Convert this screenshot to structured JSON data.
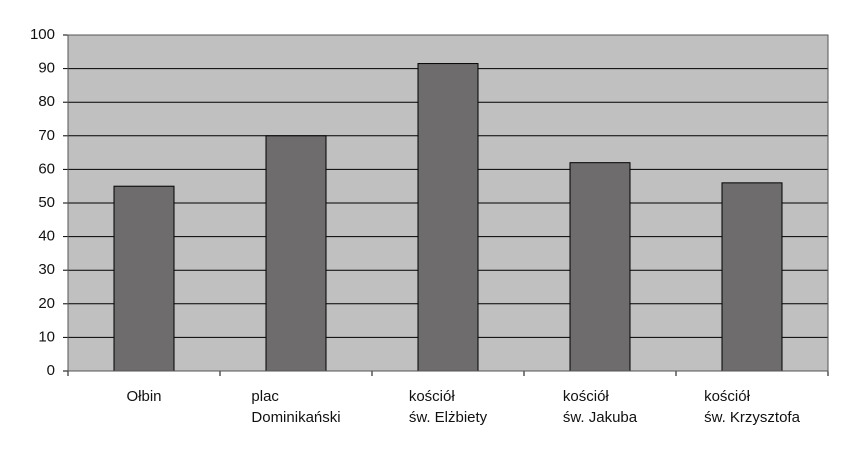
{
  "chart_data": {
    "type": "bar",
    "categories": [
      [
        "Ołbin"
      ],
      [
        "plac",
        "Dominikański"
      ],
      [
        "kościół",
        "św. Elżbiety"
      ],
      [
        "kościół",
        "św. Jakuba"
      ],
      [
        "kościół",
        "św. Krzysztofa"
      ]
    ],
    "values": [
      55,
      70,
      91.5,
      62,
      56
    ],
    "color": "#6e6c6c",
    "plot_background": "#c0c0c0",
    "ylim": [
      0,
      100
    ],
    "yticks": [
      0,
      10,
      20,
      30,
      40,
      50,
      60,
      70,
      80,
      90,
      100
    ],
    "grid": true
  }
}
